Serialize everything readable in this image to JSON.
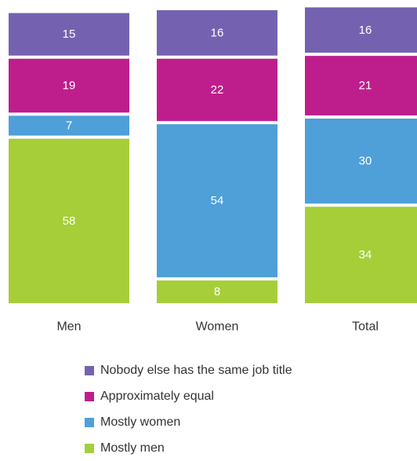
{
  "chart_data": {
    "type": "bar",
    "stacked": true,
    "categories": [
      "Men",
      "Women",
      "Total"
    ],
    "series": [
      {
        "name": "Mostly men",
        "color": "#a6ce39",
        "values": [
          58,
          8,
          34
        ]
      },
      {
        "name": "Mostly women",
        "color": "#4f9fd8",
        "values": [
          7,
          54,
          30
        ]
      },
      {
        "name": "Approximately equal",
        "color": "#be1e8c",
        "values": [
          19,
          22,
          21
        ]
      },
      {
        "name": "Nobody else has the same job title",
        "color": "#7462b0",
        "values": [
          15,
          16,
          16
        ]
      }
    ],
    "ylim": [
      0,
      100
    ],
    "grid": false,
    "legend": "bottom"
  }
}
